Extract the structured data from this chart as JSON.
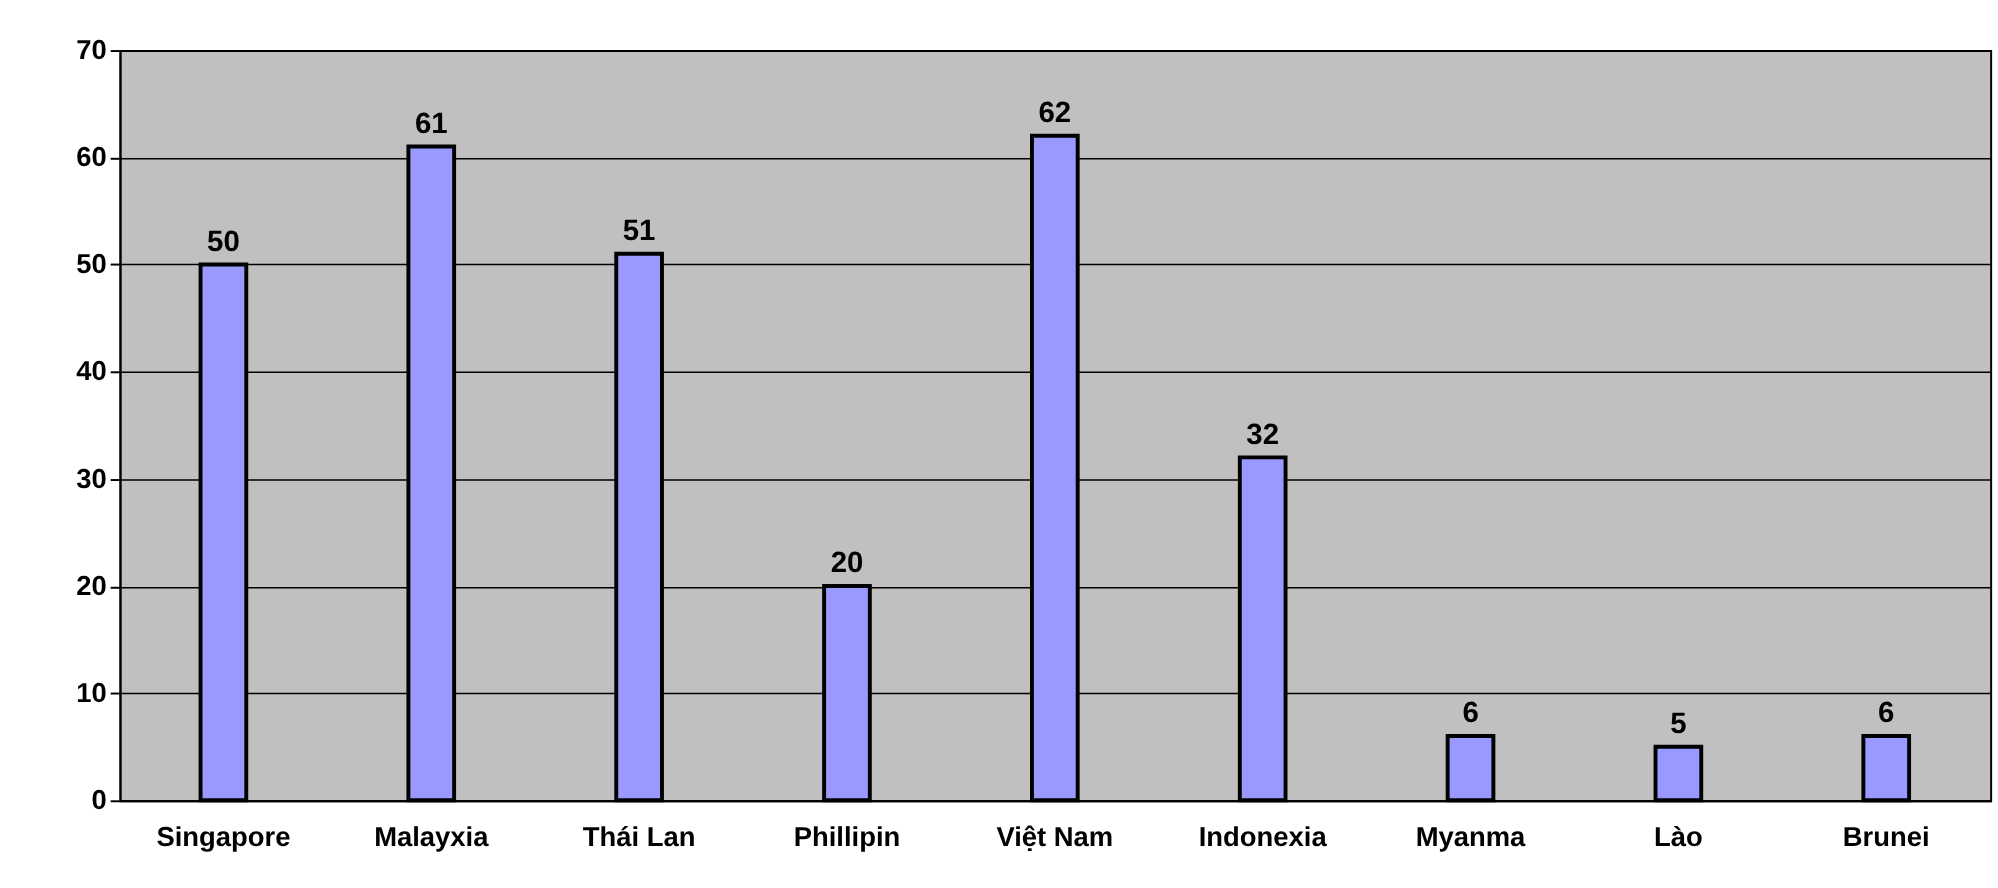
{
  "chart_data": {
    "type": "bar",
    "categories": [
      "Singapore",
      "Malayxia",
      "Thái Lan",
      "Phillipin",
      "Việt Nam",
      "Indonexia",
      "Myanma",
      "Lào",
      "Brunei"
    ],
    "values": [
      50,
      61,
      51,
      20,
      62,
      32,
      6,
      5,
      6
    ],
    "color": "#9999ff",
    "ylim": [
      0,
      70
    ],
    "yticks": [
      0,
      10,
      20,
      30,
      40,
      50,
      60,
      70
    ],
    "grid": "y",
    "data_labels": true
  }
}
